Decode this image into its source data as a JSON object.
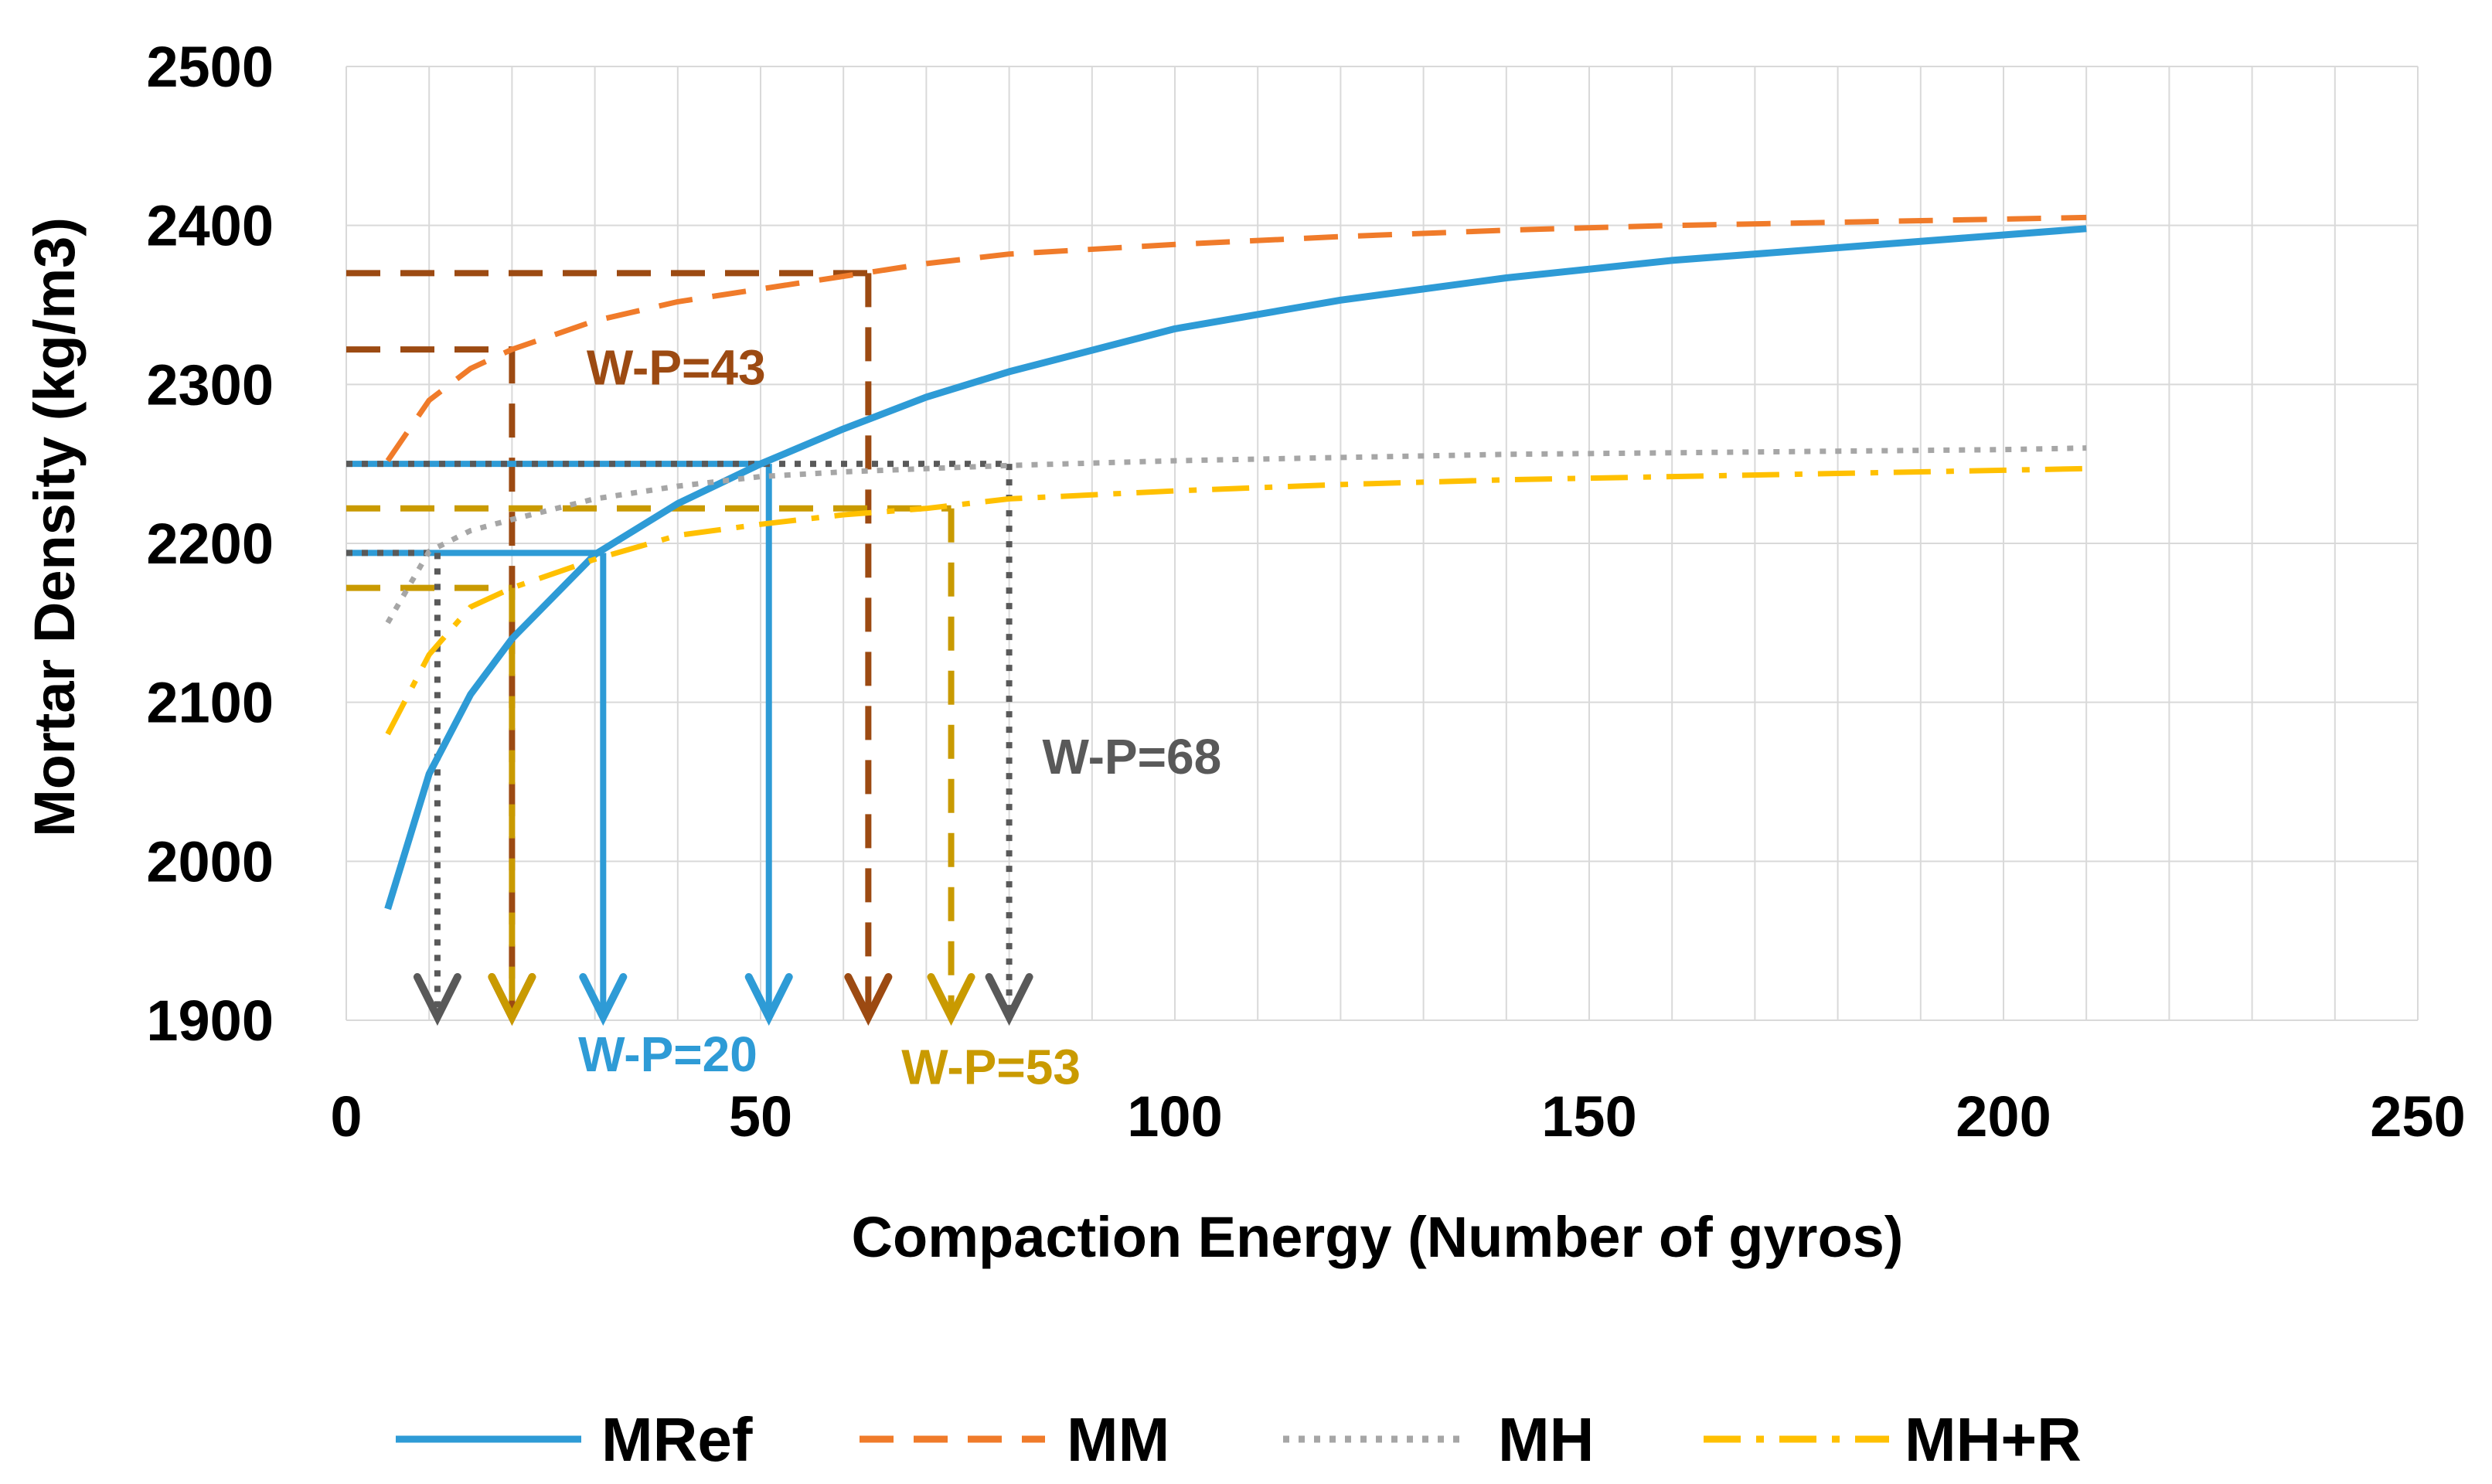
{
  "chart_data": {
    "type": "line",
    "title": "",
    "xlabel": "Compaction Energy (Number of gyros)",
    "ylabel": "Mortar Density (kg/m3)",
    "xlim": [
      0,
      250
    ],
    "ylim": [
      1900,
      2500
    ],
    "xticks": [
      0,
      50,
      100,
      150,
      200,
      250
    ],
    "xtick_labels": [
      "0",
      "50",
      "100",
      "150",
      "200",
      "250"
    ],
    "yticks": [
      1900,
      2000,
      2100,
      2200,
      2300,
      2400,
      2500
    ],
    "ytick_labels": [
      "1900",
      "2000",
      "2100",
      "2200",
      "2300",
      "2400",
      "2500"
    ],
    "grid": true,
    "legend_position": "bottom",
    "series": [
      {
        "name": "MRef",
        "color": "#2E9BD6",
        "style": "solid",
        "x": [
          5,
          10,
          15,
          20,
          30,
          40,
          50,
          60,
          70,
          80,
          100,
          120,
          140,
          160,
          180,
          200,
          210
        ],
        "y": [
          1970,
          2055,
          2105,
          2140,
          2193,
          2225,
          2250,
          2272,
          2292,
          2308,
          2335,
          2353,
          2367,
          2378,
          2386,
          2394,
          2398
        ]
      },
      {
        "name": "MM",
        "color": "#F07B2A",
        "style": "dashed",
        "x": [
          5,
          10,
          15,
          20,
          30,
          40,
          50,
          60,
          70,
          80,
          100,
          120,
          140,
          160,
          180,
          200,
          210
        ],
        "y": [
          2252,
          2290,
          2310,
          2322,
          2340,
          2352,
          2360,
          2368,
          2376,
          2382,
          2388,
          2393,
          2397,
          2400,
          2402,
          2404,
          2405
        ]
      },
      {
        "name": "MH",
        "color": "#A6A6A6",
        "style": "dotted",
        "x": [
          5,
          10,
          15,
          20,
          30,
          40,
          50,
          60,
          70,
          80,
          100,
          120,
          140,
          160,
          180,
          200,
          210
        ],
        "y": [
          2150,
          2195,
          2208,
          2215,
          2228,
          2236,
          2242,
          2245,
          2247,
          2249,
          2252,
          2254,
          2256,
          2257,
          2258,
          2259,
          2260
        ]
      },
      {
        "name": "MH+R",
        "color": "#FFC000",
        "style": "dashdot",
        "x": [
          5,
          10,
          15,
          20,
          30,
          40,
          50,
          60,
          70,
          80,
          100,
          120,
          140,
          160,
          180,
          200,
          210
        ],
        "y": [
          2080,
          2130,
          2160,
          2172,
          2190,
          2205,
          2212,
          2218,
          2222,
          2228,
          2233,
          2237,
          2240,
          2242,
          2244,
          2246,
          2247
        ]
      }
    ],
    "guides": [
      {
        "group": "MM",
        "color": "#9C4A12",
        "style": "dashed",
        "density": 2370,
        "x": 63
      },
      {
        "group": "MM",
        "color": "#9C4A12",
        "style": "dashed",
        "density": 2322,
        "x": 20
      },
      {
        "group": "MRef",
        "color": "#2E9BD6",
        "style": "solid",
        "density": 2250,
        "x": 51
      },
      {
        "group": "MRef",
        "color": "#2E9BD6",
        "style": "solid",
        "density": 2194,
        "x": 31
      },
      {
        "group": "MH",
        "color": "#595959",
        "style": "dotted",
        "density": 2250,
        "x": 80
      },
      {
        "group": "MH",
        "color": "#595959",
        "style": "dotted",
        "density": 2194,
        "x": 11
      },
      {
        "group": "MH+R",
        "color": "#C99A00",
        "style": "dashed",
        "density": 2222,
        "x": 73
      },
      {
        "group": "MH+R",
        "color": "#C99A00",
        "style": "dashed",
        "density": 2172,
        "x": 20
      }
    ],
    "annotations": [
      {
        "text": "W-P=43",
        "color": "#9C4A12",
        "x": 29,
        "y": 2300
      },
      {
        "text": "W-P=68",
        "color": "#595959",
        "x": 84,
        "y": 2055
      },
      {
        "text": "W-P=20",
        "color": "#2E9BD6",
        "x": 28,
        "y": 1868
      },
      {
        "text": "W-P=53",
        "color": "#C99A00",
        "x": 67,
        "y": 1860
      }
    ]
  }
}
